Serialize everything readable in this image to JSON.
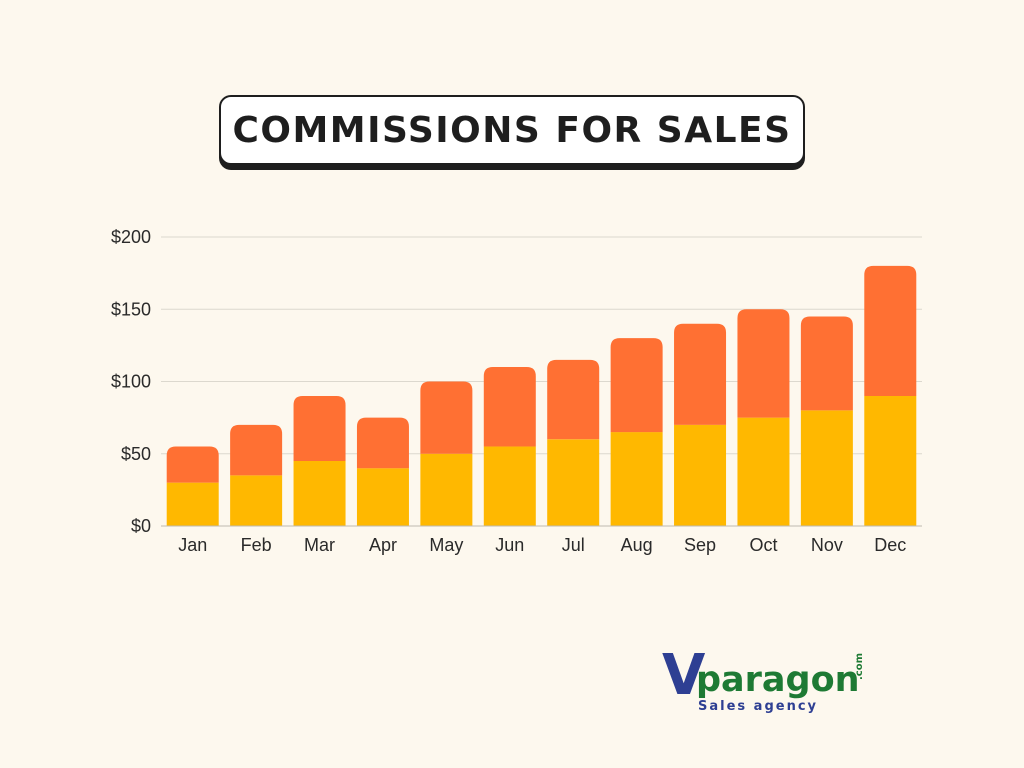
{
  "title": "COMMISSIONS FOR SALES",
  "chart_data": {
    "type": "bar",
    "stacked": true,
    "title": "COMMISSIONS FOR SALES",
    "categories": [
      "Jan",
      "Feb",
      "Mar",
      "Apr",
      "May",
      "Jun",
      "Jul",
      "Aug",
      "Sep",
      "Oct",
      "Nov",
      "Dec"
    ],
    "series": [
      {
        "color": "#FFB800",
        "values": [
          30,
          35,
          45,
          40,
          50,
          55,
          60,
          65,
          70,
          75,
          80,
          90
        ]
      },
      {
        "color": "#FF7033",
        "values": [
          25,
          35,
          45,
          35,
          50,
          55,
          55,
          65,
          70,
          75,
          65,
          90
        ]
      }
    ],
    "yticks": [
      0,
      50,
      100,
      150,
      200
    ],
    "ytick_labels": [
      "$0",
      "$50",
      "$100",
      "$150",
      "$200"
    ],
    "ylim": [
      0,
      200
    ],
    "grid": true,
    "legend": "none"
  },
  "logo": {
    "mark": "V",
    "name": "paragon",
    "suffix": ".com",
    "tagline": "Sales agency",
    "colors": {
      "mark": "#2E3F93",
      "name": "#1E7A34",
      "tagline": "#2E3F93"
    }
  }
}
